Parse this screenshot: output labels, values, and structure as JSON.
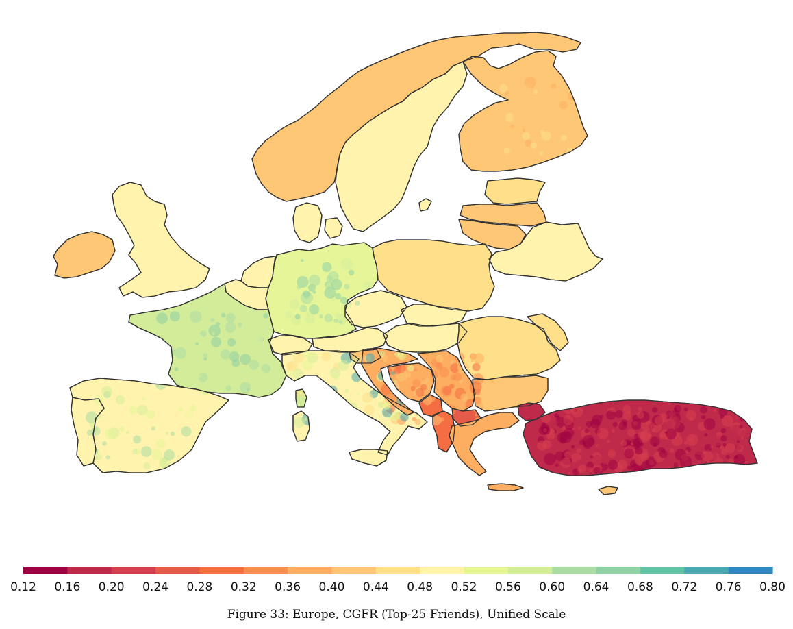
{
  "caption": "Figure 33: Europe, CGFR (Top-25 Friends), Unified Scale",
  "colorbar": {
    "min": 0.12,
    "max": 0.8,
    "step": 0.04,
    "tick_labels": [
      "0.12",
      "0.16",
      "0.20",
      "0.24",
      "0.28",
      "0.32",
      "0.36",
      "0.40",
      "0.44",
      "0.48",
      "0.52",
      "0.56",
      "0.60",
      "0.64",
      "0.68",
      "0.72",
      "0.76",
      "0.80"
    ],
    "colors": [
      "#9e0142",
      "#c02a4a",
      "#d53e4f",
      "#e55a48",
      "#f46d43",
      "#f98e52",
      "#fdae61",
      "#fdc776",
      "#fee08b",
      "#fff3ad",
      "#e6f598",
      "#d3ec9a",
      "#abdda4",
      "#8fd0a4",
      "#66c2a5",
      "#4da7b0",
      "#3288bd"
    ]
  },
  "chart_data": {
    "type": "choropleth",
    "metric": "CGFR (Top-25 Friends)",
    "scale": "Unified Scale",
    "range": [
      0.12,
      0.8
    ],
    "regions": [
      {
        "name": "Norway",
        "value": 0.42
      },
      {
        "name": "Sweden",
        "value": 0.48
      },
      {
        "name": "Finland",
        "value": 0.4
      },
      {
        "name": "Estonia",
        "value": 0.44
      },
      {
        "name": "Latvia",
        "value": 0.42
      },
      {
        "name": "Lithuania",
        "value": 0.42
      },
      {
        "name": "Belarus",
        "value": 0.48
      },
      {
        "name": "Poland",
        "value": 0.46
      },
      {
        "name": "Germany",
        "value": 0.54
      },
      {
        "name": "Denmark",
        "value": 0.5
      },
      {
        "name": "Netherlands",
        "value": 0.5
      },
      {
        "name": "Belgium",
        "value": 0.5
      },
      {
        "name": "France",
        "value": 0.56
      },
      {
        "name": "Spain",
        "value": 0.5
      },
      {
        "name": "Portugal",
        "value": 0.5
      },
      {
        "name": "United Kingdom",
        "value": 0.48
      },
      {
        "name": "Ireland",
        "value": 0.42
      },
      {
        "name": "Switzerland",
        "value": 0.5
      },
      {
        "name": "Austria",
        "value": 0.48
      },
      {
        "name": "Czechia",
        "value": 0.48
      },
      {
        "name": "Slovakia",
        "value": 0.48
      },
      {
        "name": "Hungary",
        "value": 0.48
      },
      {
        "name": "Italy",
        "value": 0.48
      },
      {
        "name": "Slovenia",
        "value": 0.4
      },
      {
        "name": "Croatia",
        "value": 0.36
      },
      {
        "name": "Bosnia and Herzegovina",
        "value": 0.36
      },
      {
        "name": "Serbia",
        "value": 0.38
      },
      {
        "name": "Montenegro",
        "value": 0.3
      },
      {
        "name": "Albania",
        "value": 0.3
      },
      {
        "name": "North Macedonia",
        "value": 0.24
      },
      {
        "name": "Romania",
        "value": 0.44
      },
      {
        "name": "Moldova",
        "value": 0.44
      },
      {
        "name": "Bulgaria",
        "value": 0.4
      },
      {
        "name": "Greece",
        "value": 0.38
      },
      {
        "name": "Turkey",
        "value": 0.18
      },
      {
        "name": "Cyprus",
        "value": 0.4
      }
    ]
  }
}
